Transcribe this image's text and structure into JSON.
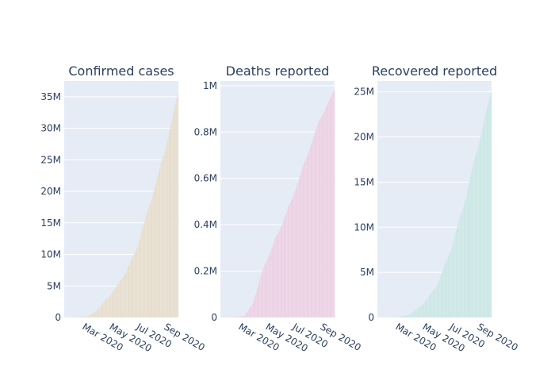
{
  "chart_data": [
    {
      "type": "bar",
      "title": "Confirmed cases",
      "color": "#e6dccb",
      "x_start": "2020-01-22",
      "x_end": "2020-10-05",
      "x_ticks": [
        "Mar 2020",
        "May 2020",
        "Jul 2020",
        "Sep 2020"
      ],
      "x_tick_dates": [
        "2020-03-01",
        "2020-05-01",
        "2020-07-01",
        "2020-09-01"
      ],
      "y_ticks": [
        0,
        5000000,
        10000000,
        15000000,
        20000000,
        25000000,
        30000000,
        35000000
      ],
      "y_tick_labels": [
        "0",
        "5M",
        "10M",
        "15M",
        "20M",
        "25M",
        "30M",
        "35M"
      ],
      "ylim": [
        0,
        37500000
      ],
      "points": [
        {
          "x": "2020-01-22",
          "y": 0
        },
        {
          "x": "2020-02-20",
          "y": 80000
        },
        {
          "x": "2020-03-10",
          "y": 120000
        },
        {
          "x": "2020-04-01",
          "y": 900000
        },
        {
          "x": "2020-05-01",
          "y": 3300000
        },
        {
          "x": "2020-06-01",
          "y": 6200000
        },
        {
          "x": "2020-07-01",
          "y": 10500000
        },
        {
          "x": "2020-08-01",
          "y": 17700000
        },
        {
          "x": "2020-09-01",
          "y": 25500000
        },
        {
          "x": "2020-10-05",
          "y": 35500000
        }
      ]
    },
    {
      "type": "bar",
      "title": "Deaths reported",
      "color": "#ebcfe3",
      "x_start": "2020-01-22",
      "x_end": "2020-10-05",
      "x_ticks": [
        "Mar 2020",
        "May 2020",
        "Jul 2020",
        "Sep 2020"
      ],
      "x_tick_dates": [
        "2020-03-01",
        "2020-05-01",
        "2020-07-01",
        "2020-09-01"
      ],
      "y_ticks": [
        0,
        200000,
        400000,
        600000,
        800000,
        1000000
      ],
      "y_tick_labels": [
        "0",
        "0.2M",
        "0.4M",
        "0.6M",
        "0.8M",
        "1M"
      ],
      "ylim": [
        0,
        1020000
      ],
      "points": [
        {
          "x": "2020-01-22",
          "y": 0
        },
        {
          "x": "2020-02-20",
          "y": 2500
        },
        {
          "x": "2020-03-15",
          "y": 6500
        },
        {
          "x": "2020-04-01",
          "y": 50000
        },
        {
          "x": "2020-05-01",
          "y": 230000
        },
        {
          "x": "2020-06-01",
          "y": 370000
        },
        {
          "x": "2020-07-01",
          "y": 510000
        },
        {
          "x": "2020-08-01",
          "y": 680000
        },
        {
          "x": "2020-09-01",
          "y": 850000
        },
        {
          "x": "2020-10-05",
          "y": 980000
        }
      ]
    },
    {
      "type": "bar",
      "title": "Recovered reported",
      "color": "#c9e6e4",
      "x_start": "2020-01-22",
      "x_end": "2020-10-05",
      "x_ticks": [
        "Mar 2020",
        "May 2020",
        "Jul 2020",
        "Sep 2020"
      ],
      "x_tick_dates": [
        "2020-03-01",
        "2020-05-01",
        "2020-07-01",
        "2020-09-01"
      ],
      "y_ticks": [
        0,
        5000000,
        10000000,
        15000000,
        20000000,
        25000000
      ],
      "y_tick_labels": [
        "0",
        "5M",
        "10M",
        "15M",
        "20M",
        "25M"
      ],
      "ylim": [
        0,
        26200000
      ],
      "points": [
        {
          "x": "2020-01-22",
          "y": 0
        },
        {
          "x": "2020-03-01",
          "y": 40000
        },
        {
          "x": "2020-04-01",
          "y": 300000
        },
        {
          "x": "2020-05-01",
          "y": 1400000
        },
        {
          "x": "2020-06-01",
          "y": 3300000
        },
        {
          "x": "2020-07-01",
          "y": 6900000
        },
        {
          "x": "2020-08-01",
          "y": 12000000
        },
        {
          "x": "2020-09-01",
          "y": 18200000
        },
        {
          "x": "2020-10-05",
          "y": 25000000
        }
      ]
    }
  ]
}
